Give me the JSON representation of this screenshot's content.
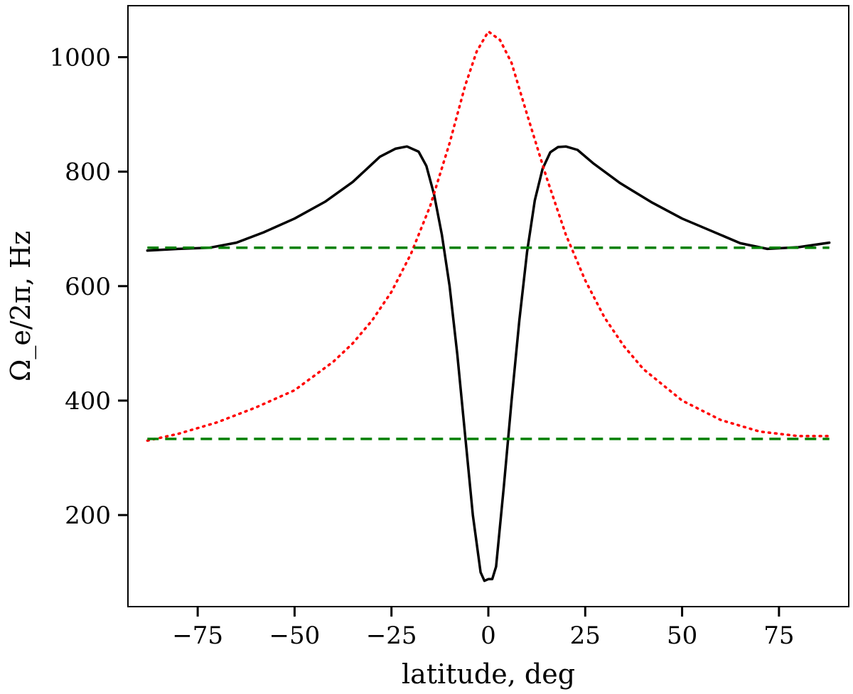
{
  "chart_data": {
    "type": "line",
    "xlabel": "latitude, deg",
    "ylabel": "Ω_e/2π, Hz",
    "xlim": [
      -93,
      93
    ],
    "ylim": [
      40,
      1090
    ],
    "x_ticks": [
      -75,
      -50,
      -25,
      0,
      25,
      50,
      75
    ],
    "x_tick_labels": [
      "−75",
      "−50",
      "−25",
      "0",
      "25",
      "50",
      "75"
    ],
    "y_ticks": [
      200,
      400,
      600,
      800,
      1000
    ],
    "y_tick_labels": [
      "200",
      "400",
      "600",
      "800",
      "1000"
    ],
    "grid": false,
    "series": [
      {
        "style": "solid",
        "color": "#000000",
        "x": [
          -88,
          -80,
          -72,
          -65,
          -58,
          -50,
          -42,
          -35,
          -28,
          -24,
          -21,
          -18,
          -16,
          -14,
          -12,
          -10,
          -8,
          -6,
          -4,
          -2,
          -1,
          0,
          1,
          2,
          4,
          6,
          8,
          10,
          12,
          14,
          16,
          18,
          20,
          23,
          27,
          34,
          42,
          50,
          57,
          65,
          72,
          80,
          88
        ],
        "y": [
          662,
          665,
          667,
          676,
          694,
          718,
          748,
          782,
          826,
          840,
          844,
          835,
          810,
          760,
          690,
          600,
          480,
          340,
          200,
          100,
          85,
          88,
          88,
          110,
          250,
          400,
          540,
          660,
          750,
          805,
          834,
          843,
          844,
          838,
          815,
          780,
          747,
          718,
          698,
          675,
          665,
          668,
          676
        ]
      },
      {
        "style": "dotted",
        "color": "#ff0000",
        "x": [
          -88,
          -80,
          -70,
          -60,
          -50,
          -40,
          -35,
          -30,
          -25,
          -20,
          -15,
          -10,
          -6,
          -3,
          0,
          3,
          6,
          10,
          15,
          20,
          25,
          30,
          35,
          40,
          50,
          60,
          70,
          80,
          88
        ],
        "y": [
          330,
          342,
          362,
          388,
          418,
          468,
          500,
          540,
          590,
          656,
          740,
          850,
          950,
          1010,
          1045,
          1030,
          990,
          900,
          790,
          690,
          610,
          545,
          495,
          455,
          400,
          366,
          346,
          338,
          338
        ]
      },
      {
        "style": "dashed",
        "color": "#008000",
        "x": [
          -88,
          88
        ],
        "y": [
          667,
          667
        ]
      },
      {
        "style": "dashed",
        "color": "#008000",
        "x": [
          -88,
          88
        ],
        "y": [
          333,
          333
        ]
      }
    ]
  }
}
